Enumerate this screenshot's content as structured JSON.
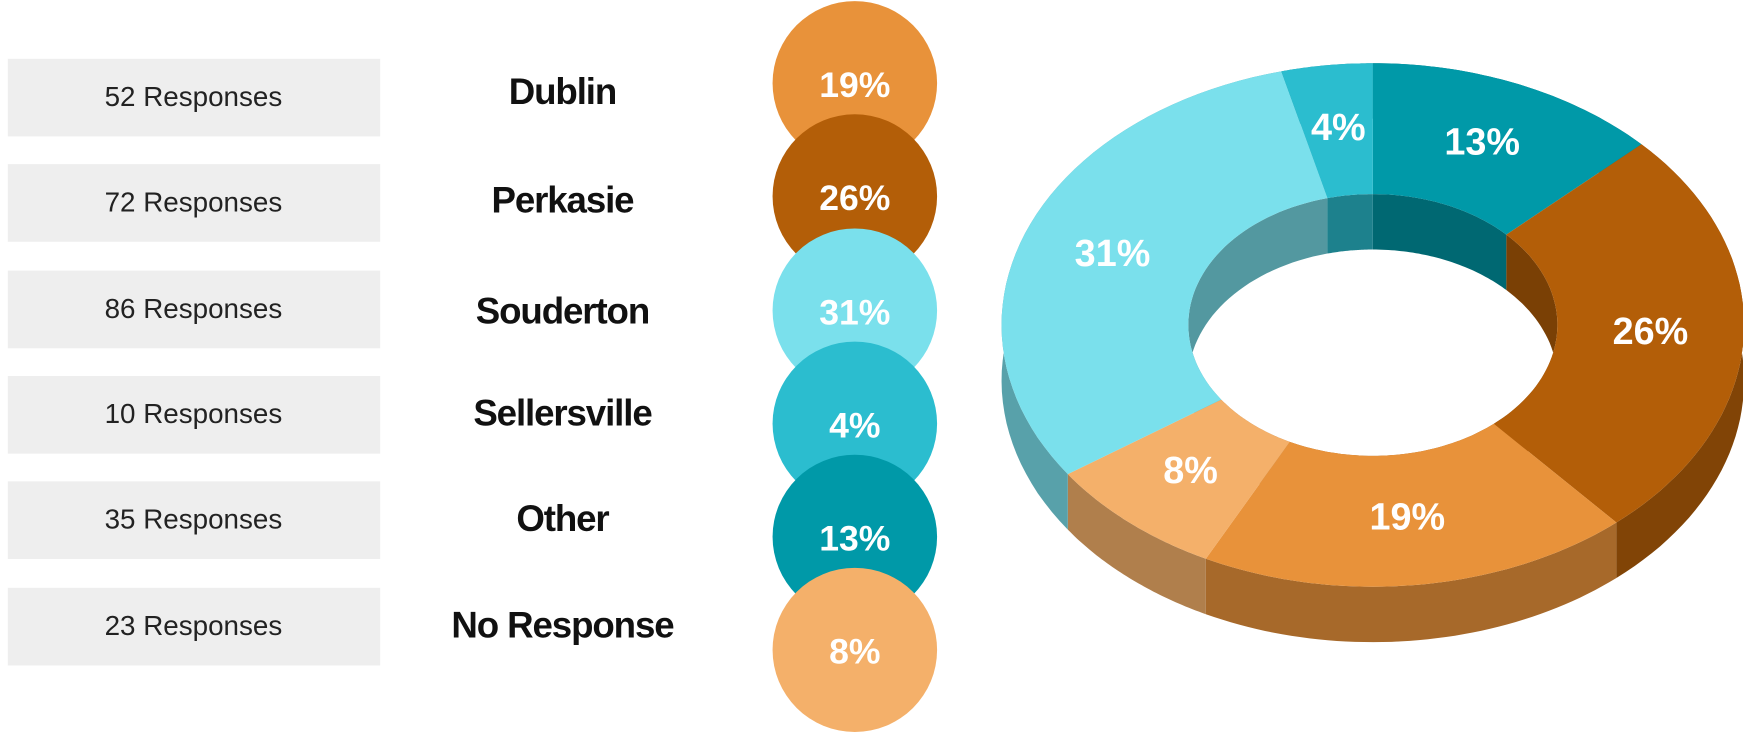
{
  "chart_data": {
    "type": "donut",
    "categories": [
      "Dublin",
      "Perkasie",
      "Souderton",
      "Sellersville",
      "Other",
      "No Response"
    ],
    "values": [
      19,
      26,
      31,
      4,
      13,
      8
    ],
    "value_labels": [
      "19%",
      "26%",
      "31%",
      "4%",
      "13%",
      "8%"
    ],
    "colors": [
      "#e8923a",
      "#b35e08",
      "#7ae0ec",
      "#2bbdcf",
      "#0099a8",
      "#f4b06a"
    ],
    "response_counts": [
      52,
      72,
      86,
      10,
      35,
      23
    ],
    "response_labels": [
      "52 Responses",
      "72 Responses",
      "86 Responses",
      "10 Responses",
      "35 Responses",
      "23 Responses"
    ],
    "slice_order": [
      "Other",
      "Perkasie",
      "Dublin",
      "No Response",
      "Souderton",
      "Sellersville"
    ]
  }
}
